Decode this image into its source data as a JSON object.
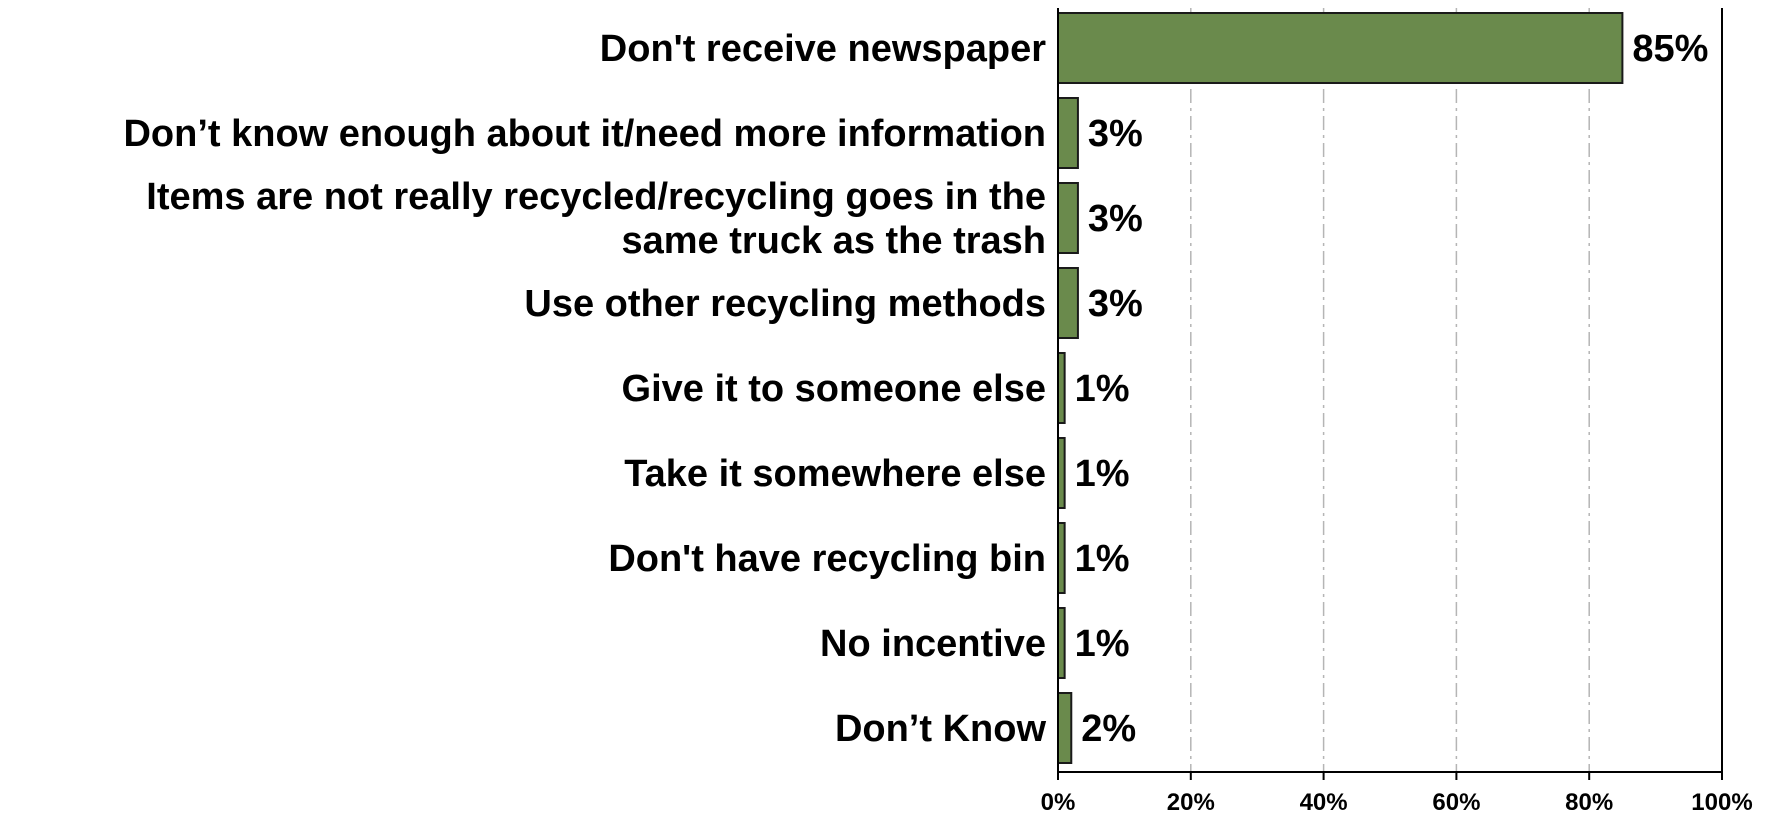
{
  "chart_data": {
    "type": "bar",
    "orientation": "horizontal",
    "categories": [
      [
        "Don't receive newspaper"
      ],
      [
        "Don’t know enough about it/need more information"
      ],
      [
        "Items are not really recycled/recycling goes in the",
        "same truck as the trash"
      ],
      [
        "Use other recycling methods"
      ],
      [
        "Give it to someone else"
      ],
      [
        "Take it somewhere else"
      ],
      [
        "Don't have recycling bin"
      ],
      [
        "No incentive"
      ],
      [
        "Don’t Know"
      ]
    ],
    "values": [
      85,
      3,
      3,
      3,
      1,
      1,
      1,
      1,
      2
    ],
    "value_labels": [
      "85%",
      "3%",
      "3%",
      "3%",
      "1%",
      "1%",
      "1%",
      "1%",
      "2%"
    ],
    "x_ticks": [
      0,
      20,
      40,
      60,
      80,
      100
    ],
    "x_tick_labels": [
      "0%",
      "20%",
      "40%",
      "60%",
      "80%",
      "100%"
    ],
    "xlim": [
      0,
      100
    ],
    "title": "",
    "xlabel": "",
    "ylabel": "",
    "grid": "vertical dash-dot",
    "legend": "none",
    "bar_color": "#6a8a4c",
    "bar_edge_color": "#1a1a1a",
    "grid_color": "#b5b5b5"
  }
}
